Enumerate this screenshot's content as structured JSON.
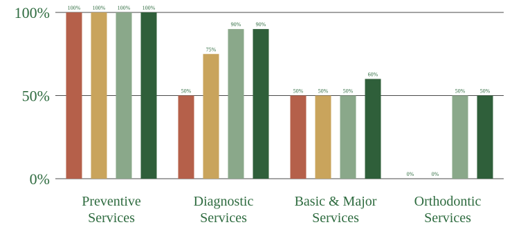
{
  "chart_data": {
    "type": "bar",
    "categories": [
      [
        "Preventive",
        "Services"
      ],
      [
        "Diagnostic",
        "Services"
      ],
      [
        "Basic & Major",
        "Services"
      ],
      [
        "Orthodontic",
        "Services"
      ]
    ],
    "series": [
      {
        "color": "#b5604a",
        "values": [
          100,
          50,
          50,
          0
        ],
        "labels": [
          "100%",
          "50%",
          "50%",
          "0%"
        ]
      },
      {
        "color": "#c9a45c",
        "values": [
          100,
          75,
          50,
          0
        ],
        "labels": [
          "100%",
          "75%",
          "50%",
          "0%"
        ]
      },
      {
        "color": "#8aa88a",
        "values": [
          100,
          90,
          50,
          50
        ],
        "labels": [
          "100%",
          "90%",
          "50%",
          "50%"
        ]
      },
      {
        "color": "#2f5f3a",
        "values": [
          100,
          90,
          60,
          50
        ],
        "labels": [
          "100%",
          "90%",
          "60%",
          "50%"
        ]
      }
    ],
    "y_ticks": [
      "0%",
      "50%",
      "100%"
    ],
    "ylim": [
      0,
      100
    ],
    "grid": true
  }
}
